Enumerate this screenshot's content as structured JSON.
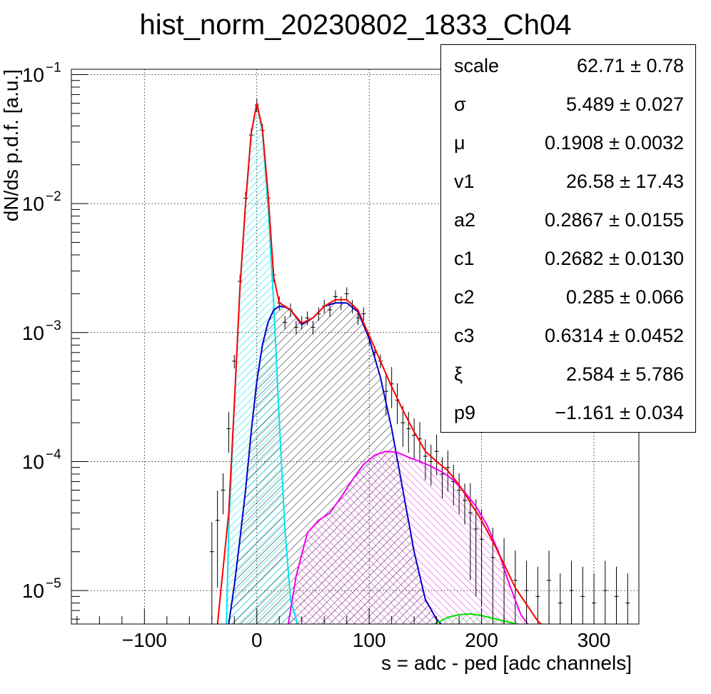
{
  "chart_data": {
    "type": "line",
    "title": "hist_norm_20230802_1833_Ch04",
    "xlabel": "s = adc - ped [adc channels]",
    "ylabel": "dN/ds p.d.f. [a.u.]",
    "xlim": [
      -165,
      340
    ],
    "ylim": [
      5.5e-06,
      0.11
    ],
    "yscale": "log",
    "grid": true,
    "x_ticks": [
      -100,
      0,
      100,
      200,
      300
    ],
    "x_tick_labels": [
      "−100",
      "0",
      "100",
      "200",
      "300"
    ],
    "y_ticks": [
      {
        "value": 0.1,
        "base": "10",
        "exp": "−1"
      },
      {
        "value": 0.01,
        "base": "10",
        "exp": "−2"
      },
      {
        "value": 0.001,
        "base": "10",
        "exp": "−3"
      },
      {
        "value": 0.0001,
        "base": "10",
        "exp": "−4"
      },
      {
        "value": 1e-05,
        "base": "10",
        "exp": "−5"
      }
    ],
    "series": [
      {
        "color": "#ff0000",
        "kind": "total-fit",
        "x": [
          -35,
          -25,
          -20,
          -15,
          -10,
          -5,
          0,
          5,
          10,
          15,
          20,
          25,
          30,
          40,
          50,
          60,
          70,
          80,
          90,
          100,
          110,
          120,
          130,
          140,
          150,
          160,
          170,
          180,
          190,
          200,
          210,
          220,
          230,
          240,
          250,
          255
        ],
        "y": [
          5.5e-06,
          4e-05,
          0.00028,
          0.0022,
          0.01,
          0.035,
          0.06,
          0.038,
          0.012,
          0.0027,
          0.0017,
          0.0016,
          0.0015,
          0.00118,
          0.0013,
          0.0016,
          0.0018,
          0.0018,
          0.0015,
          0.00095,
          0.0006,
          0.00038,
          0.00025,
          0.00017,
          0.00012,
          0.0001,
          8.5e-05,
          6.6e-05,
          4.8e-05,
          3.5e-05,
          2.4e-05,
          1.6e-05,
          1.05e-05,
          7.8e-06,
          5.8e-06,
          5.3e-06
        ]
      },
      {
        "color": "#00e5ee",
        "kind": "pedestal-component",
        "fill": "#00e5ee",
        "x": [
          -27,
          -25,
          -20,
          -15,
          -10,
          -5,
          0,
          5,
          10,
          15,
          20,
          25,
          30,
          35,
          36
        ],
        "y": [
          5.5e-06,
          3e-05,
          0.00028,
          0.0022,
          0.01,
          0.035,
          0.06,
          0.036,
          0.0095,
          0.0017,
          0.00021,
          3e-05,
          8.5e-06,
          6e-06,
          5.5e-06
        ]
      },
      {
        "color": "#0000cd",
        "kind": "single-pe-component",
        "fill": "#000000",
        "x": [
          -25,
          -20,
          -15,
          -10,
          -5,
          0,
          5,
          10,
          15,
          20,
          25,
          30,
          40,
          50,
          60,
          70,
          80,
          90,
          100,
          110,
          120,
          130,
          140,
          150,
          160,
          164
        ],
        "y": [
          5.5e-06,
          1.1e-05,
          2.5e-05,
          6e-05,
          0.00017,
          0.00042,
          0.0008,
          0.0012,
          0.0015,
          0.0016,
          0.00158,
          0.0015,
          0.00115,
          0.0013,
          0.0016,
          0.0017,
          0.0017,
          0.00145,
          0.0009,
          0.00045,
          0.00018,
          6e-05,
          2e-05,
          8.5e-06,
          6e-06,
          5.5e-06
        ]
      },
      {
        "color": "#ee00ee",
        "kind": "double-pe-component",
        "fill": "#ee00ee",
        "x": [
          28,
          35,
          45,
          55,
          65,
          75,
          85,
          95,
          105,
          115,
          125,
          135,
          145,
          155,
          165,
          175,
          185,
          195,
          205,
          215,
          225,
          235,
          241
        ],
        "y": [
          5.5e-06,
          1.3e-05,
          2.8e-05,
          3.5e-05,
          4e-05,
          5.3e-05,
          7.2e-05,
          9.5e-05,
          0.000112,
          0.00012,
          0.000118,
          0.000108,
          0.0001,
          9.2e-05,
          8.3e-05,
          7.2e-05,
          5.8e-05,
          4.5e-05,
          3.2e-05,
          2e-05,
          1.1e-05,
          6.5e-06,
          5.5e-06
        ]
      },
      {
        "color": "#00dd00",
        "kind": "triple-pe-component",
        "fill": "#00dd00",
        "x": [
          158,
          170,
          180,
          190,
          200,
          210,
          220,
          232
        ],
        "y": [
          5.5e-06,
          6.2e-06,
          6.5e-06,
          6.6e-06,
          6.4e-06,
          6.1e-06,
          5.8e-06,
          5.5e-06
        ]
      }
    ],
    "histogram": {
      "color": "#000000",
      "x": [
        -40,
        -35,
        -30,
        -25,
        -20,
        -15,
        -10,
        -5,
        0,
        5,
        10,
        15,
        20,
        25,
        30,
        35,
        40,
        45,
        50,
        55,
        60,
        65,
        70,
        75,
        80,
        85,
        90,
        95,
        100,
        105,
        110,
        115,
        120,
        125,
        130,
        135,
        140,
        145,
        150,
        155,
        160,
        165,
        170,
        175,
        180,
        185,
        190,
        195,
        200,
        210,
        220,
        230,
        240,
        250,
        260,
        270,
        280,
        290,
        300,
        310,
        320,
        330
      ],
      "y": [
        2e-05,
        3.5e-05,
        6e-05,
        0.00018,
        0.0006,
        0.0025,
        0.011,
        0.034,
        0.058,
        0.037,
        0.011,
        0.0028,
        0.0017,
        0.0012,
        0.0015,
        0.0011,
        0.0012,
        0.0013,
        0.0011,
        0.0014,
        0.0016,
        0.0015,
        0.0019,
        0.0017,
        0.002,
        0.0016,
        0.0013,
        0.0014,
        0.0009,
        0.0007,
        0.0006,
        0.00035,
        0.0004,
        0.0003,
        0.0002,
        0.00018,
        0.00016,
        0.00015,
        0.00011,
        0.0001,
        0.00012,
        8e-05,
        9e-05,
        7e-05,
        6e-05,
        5e-05,
        4e-05,
        3e-05,
        2.5e-05,
        1.8e-05,
        1.5e-05,
        1.2e-05,
        1e-05,
        9e-06,
        1.2e-05,
        8e-06,
        1e-05,
        9e-06,
        8e-06,
        1e-05,
        9e-06,
        8e-06
      ]
    }
  },
  "stats": [
    {
      "name": "scale",
      "value": "62.71",
      "error": "0.78"
    },
    {
      "name": "σ",
      "value": "5.489",
      "error": "0.027"
    },
    {
      "name": "μ",
      "value": "0.1908",
      "error": "0.0032"
    },
    {
      "name": "v1",
      "value": "26.58",
      "error": "17.43"
    },
    {
      "name": "a2",
      "value": "0.2867",
      "error": "0.0155"
    },
    {
      "name": "c1",
      "value": "0.2682",
      "error": "0.0130"
    },
    {
      "name": "c2",
      "value": "0.285",
      "error": "0.066"
    },
    {
      "name": "c3",
      "value": "0.6314",
      "error": "0.0452"
    },
    {
      "name": "ξ",
      "value": "2.584",
      "error": "5.786"
    },
    {
      "name": "p9",
      "value": "−1.161",
      "error": "0.034"
    }
  ],
  "pm_symbol": "±"
}
